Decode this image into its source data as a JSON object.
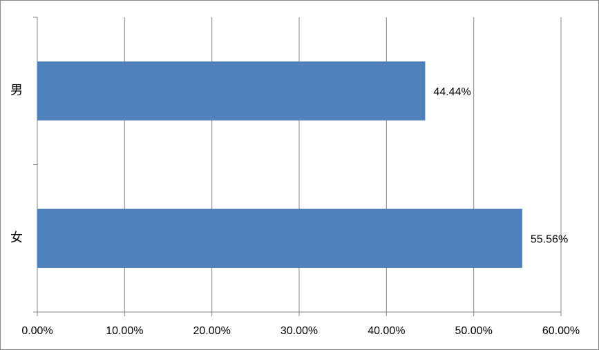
{
  "chart_data": {
    "type": "bar",
    "orientation": "horizontal",
    "categories": [
      "男",
      "女"
    ],
    "values": [
      44.44,
      55.56
    ],
    "value_labels": [
      "44.44%",
      "55.56%"
    ],
    "color": "#4f81bd",
    "xlim": [
      0,
      60
    ],
    "xticks": [
      {
        "value": 0,
        "label": "0.00%"
      },
      {
        "value": 10,
        "label": "10.00%"
      },
      {
        "value": 20,
        "label": "20.00%"
      },
      {
        "value": 30,
        "label": "30.00%"
      },
      {
        "value": 40,
        "label": "40.00%"
      },
      {
        "value": 50,
        "label": "50.00%"
      },
      {
        "value": 60,
        "label": "60.00%"
      }
    ],
    "grid": true
  }
}
